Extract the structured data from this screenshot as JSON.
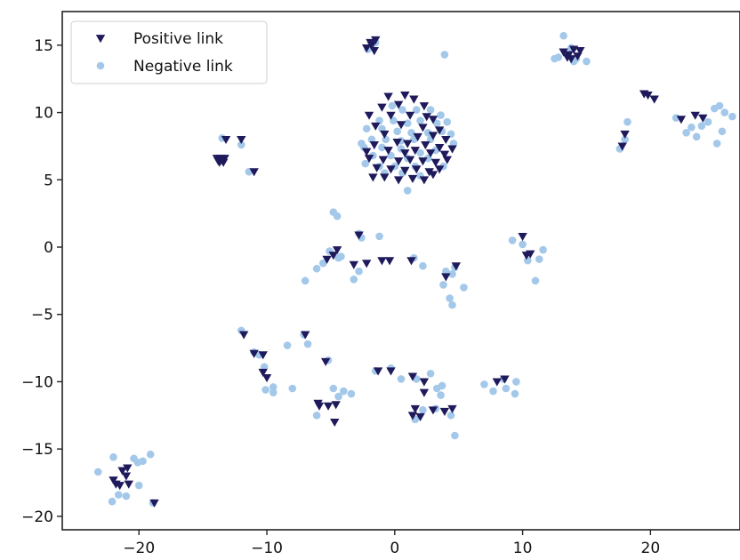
{
  "chart_data": {
    "type": "scatter",
    "title": "",
    "xlabel": "",
    "ylabel": "",
    "xlim": [
      -26,
      27
    ],
    "ylim": [
      -21,
      17.5
    ],
    "xticks": [
      -20,
      -10,
      0,
      10,
      20
    ],
    "yticks": [
      15,
      10,
      5,
      0,
      -5,
      -10,
      -15,
      -20
    ],
    "xtick_labels": [
      "−20",
      "−10",
      "0",
      "10",
      "20"
    ],
    "ytick_labels": [
      "15",
      "10",
      "5",
      "0",
      "−5",
      "−10",
      "−15",
      "−20"
    ],
    "grid": false,
    "legend_position": "top-left",
    "series": [
      {
        "name": "Positive link",
        "marker": "triangle-down",
        "color": "#1f1a5c",
        "points": [
          [
            -1.5,
            15.4
          ],
          [
            -1.8,
            15.0
          ],
          [
            -2.2,
            14.8
          ],
          [
            -1.6,
            14.6
          ],
          [
            -1.9,
            15.2
          ],
          [
            13.2,
            14.5
          ],
          [
            13.6,
            14.3
          ],
          [
            14.0,
            14.7
          ],
          [
            14.3,
            14.2
          ],
          [
            13.8,
            14.0
          ],
          [
            14.5,
            14.6
          ],
          [
            13.5,
            14.1
          ],
          [
            19.5,
            11.4
          ],
          [
            19.8,
            11.3
          ],
          [
            20.3,
            11.0
          ],
          [
            17.8,
            7.5
          ],
          [
            18.0,
            8.4
          ],
          [
            22.4,
            9.5
          ],
          [
            23.5,
            9.8
          ],
          [
            24.1,
            9.6
          ],
          [
            -13.2,
            8.0
          ],
          [
            -12.0,
            8.0
          ],
          [
            -11.0,
            5.6
          ],
          [
            -13.6,
            6.6
          ],
          [
            -13.8,
            6.4
          ],
          [
            -13.4,
            6.3
          ],
          [
            -13.9,
            6.6
          ],
          [
            -13.5,
            6.5
          ],
          [
            -13.7,
            6.3
          ],
          [
            -13.3,
            6.6
          ],
          [
            -0.5,
            11.2
          ],
          [
            0.8,
            11.3
          ],
          [
            1.5,
            11.0
          ],
          [
            -1.0,
            10.4
          ],
          [
            0.3,
            10.6
          ],
          [
            2.3,
            10.5
          ],
          [
            -2.0,
            9.8
          ],
          [
            -0.3,
            9.8
          ],
          [
            1.2,
            9.8
          ],
          [
            3.0,
            9.5
          ],
          [
            -1.5,
            9.0
          ],
          [
            0.5,
            9.1
          ],
          [
            2.2,
            8.9
          ],
          [
            3.5,
            8.7
          ],
          [
            -0.8,
            8.4
          ],
          [
            1.8,
            8.2
          ],
          [
            3.0,
            8.3
          ],
          [
            4.0,
            8.0
          ],
          [
            0.2,
            7.8
          ],
          [
            1.0,
            7.7
          ],
          [
            2.4,
            7.6
          ],
          [
            3.5,
            7.4
          ],
          [
            -1.6,
            7.6
          ],
          [
            -0.5,
            7.2
          ],
          [
            0.8,
            7.0
          ],
          [
            1.6,
            7.2
          ],
          [
            2.8,
            7.0
          ],
          [
            3.9,
            6.9
          ],
          [
            -2.0,
            6.6
          ],
          [
            -0.9,
            6.5
          ],
          [
            0.3,
            6.4
          ],
          [
            1.2,
            6.5
          ],
          [
            2.2,
            6.4
          ],
          [
            3.2,
            6.3
          ],
          [
            4.1,
            6.5
          ],
          [
            -1.4,
            5.9
          ],
          [
            -0.3,
            5.8
          ],
          [
            0.8,
            5.7
          ],
          [
            1.7,
            5.8
          ],
          [
            2.7,
            5.6
          ],
          [
            3.5,
            5.8
          ],
          [
            -0.8,
            5.2
          ],
          [
            0.3,
            5.0
          ],
          [
            1.4,
            5.1
          ],
          [
            2.3,
            5.0
          ],
          [
            3.0,
            5.4
          ],
          [
            -1.7,
            5.2
          ],
          [
            4.5,
            7.3
          ],
          [
            -2.2,
            7.1
          ],
          [
            2.5,
            9.7
          ],
          [
            -2.8,
            0.9
          ],
          [
            -4.5,
            -0.2
          ],
          [
            -4.8,
            -0.6
          ],
          [
            -5.3,
            -0.9
          ],
          [
            -3.2,
            -1.3
          ],
          [
            -2.2,
            -1.2
          ],
          [
            -1.0,
            -1.0
          ],
          [
            -0.4,
            -1.0
          ],
          [
            1.3,
            -1.0
          ],
          [
            4.0,
            -2.2
          ],
          [
            4.8,
            -1.4
          ],
          [
            10.0,
            0.8
          ],
          [
            10.3,
            -0.6
          ],
          [
            10.6,
            -0.5
          ],
          [
            -11.8,
            -6.5
          ],
          [
            -7.0,
            -6.5
          ],
          [
            -10.3,
            -8.0
          ],
          [
            -11.0,
            -7.9
          ],
          [
            -10.0,
            -9.7
          ],
          [
            -10.3,
            -9.3
          ],
          [
            -5.4,
            -8.5
          ],
          [
            -5.9,
            -11.8
          ],
          [
            -5.2,
            -11.8
          ],
          [
            -6.0,
            -11.6
          ],
          [
            -4.6,
            -11.7
          ],
          [
            -4.7,
            -13.0
          ],
          [
            -1.3,
            -9.2
          ],
          [
            -0.3,
            -9.2
          ],
          [
            1.4,
            -9.6
          ],
          [
            2.3,
            -10.0
          ],
          [
            2.3,
            -10.8
          ],
          [
            1.6,
            -12.0
          ],
          [
            1.4,
            -12.5
          ],
          [
            2.0,
            -12.6
          ],
          [
            3.0,
            -12.1
          ],
          [
            3.9,
            -12.2
          ],
          [
            4.5,
            -12.0
          ],
          [
            8.0,
            -10.0
          ],
          [
            8.6,
            -9.8
          ],
          [
            -22.0,
            -17.3
          ],
          [
            -21.0,
            -17.0
          ],
          [
            -21.3,
            -16.6
          ],
          [
            -21.8,
            -17.6
          ],
          [
            -20.8,
            -17.6
          ],
          [
            -21.5,
            -17.7
          ],
          [
            -20.9,
            -16.4
          ],
          [
            -18.8,
            -19.0
          ]
        ]
      },
      {
        "name": "Negative link",
        "marker": "circle",
        "color": "#a3c8ea",
        "points": [
          [
            -1.8,
            15.0
          ],
          [
            -2.1,
            14.7
          ],
          [
            -1.5,
            15.2
          ],
          [
            3.9,
            14.3
          ],
          [
            12.5,
            14.0
          ],
          [
            12.8,
            14.1
          ],
          [
            13.2,
            15.7
          ],
          [
            13.5,
            14.3
          ],
          [
            14.0,
            13.8
          ],
          [
            15.0,
            13.8
          ],
          [
            14.2,
            14.0
          ],
          [
            13.8,
            14.8
          ],
          [
            18.2,
            9.3
          ],
          [
            17.6,
            7.3
          ],
          [
            18.0,
            8.0
          ],
          [
            22.0,
            9.6
          ],
          [
            22.8,
            8.5
          ],
          [
            23.2,
            8.9
          ],
          [
            23.6,
            8.2
          ],
          [
            24.0,
            9.0
          ],
          [
            24.5,
            9.3
          ],
          [
            25.0,
            10.3
          ],
          [
            25.4,
            10.5
          ],
          [
            25.8,
            10.0
          ],
          [
            26.4,
            9.7
          ],
          [
            25.6,
            8.6
          ],
          [
            25.2,
            7.7
          ],
          [
            -12.0,
            7.6
          ],
          [
            -11.4,
            5.6
          ],
          [
            -13.5,
            8.1
          ],
          [
            -0.2,
            10.5
          ],
          [
            0.6,
            10.2
          ],
          [
            1.7,
            10.2
          ],
          [
            2.8,
            10.2
          ],
          [
            3.6,
            9.8
          ],
          [
            -1.2,
            9.4
          ],
          [
            -0.1,
            9.4
          ],
          [
            1.0,
            9.2
          ],
          [
            2.0,
            9.4
          ],
          [
            3.3,
            9.2
          ],
          [
            4.1,
            9.3
          ],
          [
            -2.2,
            8.8
          ],
          [
            -1.0,
            8.8
          ],
          [
            0.2,
            8.6
          ],
          [
            1.3,
            8.5
          ],
          [
            2.6,
            8.5
          ],
          [
            3.7,
            8.6
          ],
          [
            4.4,
            8.4
          ],
          [
            -1.8,
            8.0
          ],
          [
            -0.7,
            8.0
          ],
          [
            0.5,
            7.9
          ],
          [
            1.5,
            8.0
          ],
          [
            2.8,
            8.0
          ],
          [
            4.6,
            7.7
          ],
          [
            -2.4,
            7.4
          ],
          [
            -1.0,
            7.4
          ],
          [
            0.5,
            7.3
          ],
          [
            2.0,
            7.0
          ],
          [
            3.2,
            7.2
          ],
          [
            -1.7,
            6.8
          ],
          [
            -0.3,
            6.8
          ],
          [
            1.0,
            6.6
          ],
          [
            2.6,
            6.6
          ],
          [
            -2.3,
            6.2
          ],
          [
            -1.2,
            6.0
          ],
          [
            0.0,
            6.0
          ],
          [
            1.6,
            6.0
          ],
          [
            -0.8,
            5.5
          ],
          [
            0.6,
            5.5
          ],
          [
            2.0,
            5.3
          ],
          [
            3.8,
            6.0
          ],
          [
            1.0,
            4.2
          ],
          [
            -2.6,
            7.7
          ],
          [
            -4.8,
            2.6
          ],
          [
            -4.5,
            2.3
          ],
          [
            -2.8,
            1.0
          ],
          [
            -2.6,
            0.7
          ],
          [
            -1.2,
            0.8
          ],
          [
            -5.1,
            -0.3
          ],
          [
            -5.6,
            -1.2
          ],
          [
            -6.1,
            -1.6
          ],
          [
            -7.0,
            -2.5
          ],
          [
            -4.4,
            -0.8
          ],
          [
            -4.2,
            -0.7
          ],
          [
            -3.2,
            -2.4
          ],
          [
            -2.8,
            -1.8
          ],
          [
            1.5,
            -0.8
          ],
          [
            2.2,
            -1.4
          ],
          [
            3.8,
            -2.8
          ],
          [
            4.0,
            -1.8
          ],
          [
            4.5,
            -2.0
          ],
          [
            4.3,
            -3.8
          ],
          [
            4.5,
            -4.3
          ],
          [
            5.4,
            -3.0
          ],
          [
            4.7,
            -1.5
          ],
          [
            9.2,
            0.5
          ],
          [
            10.0,
            0.2
          ],
          [
            10.4,
            -1.0
          ],
          [
            11.3,
            -0.9
          ],
          [
            11.6,
            -0.2
          ],
          [
            11.0,
            -2.5
          ],
          [
            -12.0,
            -6.2
          ],
          [
            -11.0,
            -7.8
          ],
          [
            -10.6,
            -8.0
          ],
          [
            -10.2,
            -8.9
          ],
          [
            -8.4,
            -7.3
          ],
          [
            -7.1,
            -6.5
          ],
          [
            -6.8,
            -7.2
          ],
          [
            -10.1,
            -10.6
          ],
          [
            -9.5,
            -10.8
          ],
          [
            -9.5,
            -10.4
          ],
          [
            -8.0,
            -10.5
          ],
          [
            -6.1,
            -12.5
          ],
          [
            -5.2,
            -8.4
          ],
          [
            -4.8,
            -10.5
          ],
          [
            -4.4,
            -11.1
          ],
          [
            -4.0,
            -10.7
          ],
          [
            -3.4,
            -10.9
          ],
          [
            -1.5,
            -9.2
          ],
          [
            -0.3,
            -9.0
          ],
          [
            0.5,
            -9.8
          ],
          [
            1.7,
            -9.8
          ],
          [
            2.8,
            -9.4
          ],
          [
            3.3,
            -10.5
          ],
          [
            3.6,
            -11.0
          ],
          [
            3.7,
            -10.3
          ],
          [
            1.6,
            -12.8
          ],
          [
            2.2,
            -12.1
          ],
          [
            3.2,
            -12.0
          ],
          [
            4.7,
            -14.0
          ],
          [
            4.4,
            -12.5
          ],
          [
            7.0,
            -10.2
          ],
          [
            7.7,
            -10.7
          ],
          [
            8.5,
            -9.8
          ],
          [
            8.7,
            -10.5
          ],
          [
            9.4,
            -10.9
          ],
          [
            9.5,
            -10.0
          ],
          [
            -23.2,
            -16.7
          ],
          [
            -22.0,
            -15.6
          ],
          [
            -21.6,
            -18.4
          ],
          [
            -22.1,
            -18.9
          ],
          [
            -21.0,
            -18.5
          ],
          [
            -20.4,
            -15.7
          ],
          [
            -20.0,
            -17.7
          ],
          [
            -19.7,
            -15.9
          ],
          [
            -19.1,
            -15.4
          ],
          [
            -18.9,
            -19.0
          ],
          [
            -20.1,
            -16.0
          ]
        ]
      }
    ]
  }
}
